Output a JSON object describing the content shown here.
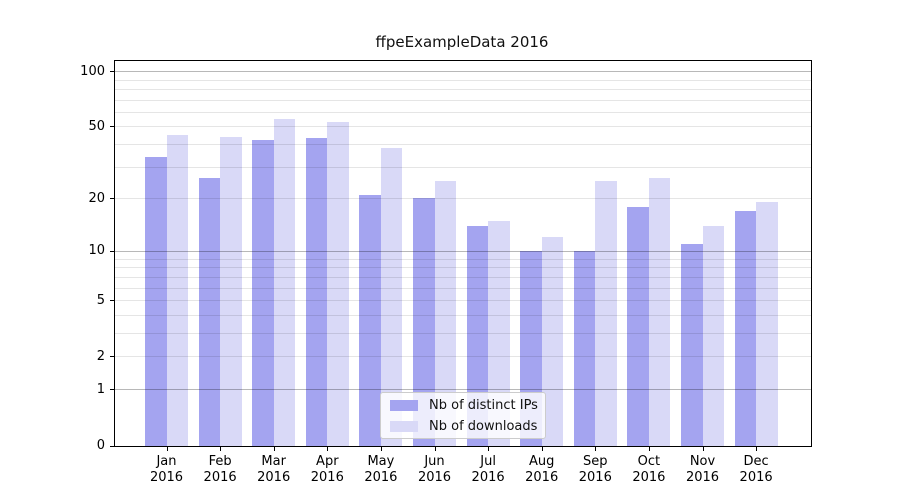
{
  "title": "ffpeExampleData 2016",
  "chart_data": {
    "type": "bar",
    "title": "ffpeExampleData 2016",
    "categories": [
      "Jan",
      "Feb",
      "Mar",
      "Apr",
      "May",
      "Jun",
      "Jul",
      "Aug",
      "Sep",
      "Oct",
      "Nov",
      "Dec"
    ],
    "category_year": "2016",
    "series": [
      {
        "name": "Nb of distinct IPs",
        "color": "#a4a4f0",
        "values": [
          34,
          26,
          42,
          43,
          21,
          20,
          14,
          10,
          10,
          18,
          11,
          17
        ]
      },
      {
        "name": "Nb of downloads",
        "color": "#d9d9f7",
        "values": [
          45,
          44,
          55,
          53,
          38,
          25,
          15,
          12,
          25,
          26,
          14,
          19
        ]
      }
    ],
    "xlabel": "",
    "ylabel": "",
    "yscale": "log1p",
    "ylim": [
      0,
      113
    ],
    "y_tick_labels": [
      100,
      50,
      20,
      10,
      5,
      2,
      1,
      0
    ],
    "y_major_gridlines": [
      1,
      10,
      100
    ],
    "y_minor_gridlines": [
      2,
      3,
      4,
      5,
      6,
      7,
      8,
      9,
      20,
      30,
      40,
      50,
      60,
      70,
      80,
      90
    ],
    "grid": true,
    "legend_position": "lower-center"
  }
}
